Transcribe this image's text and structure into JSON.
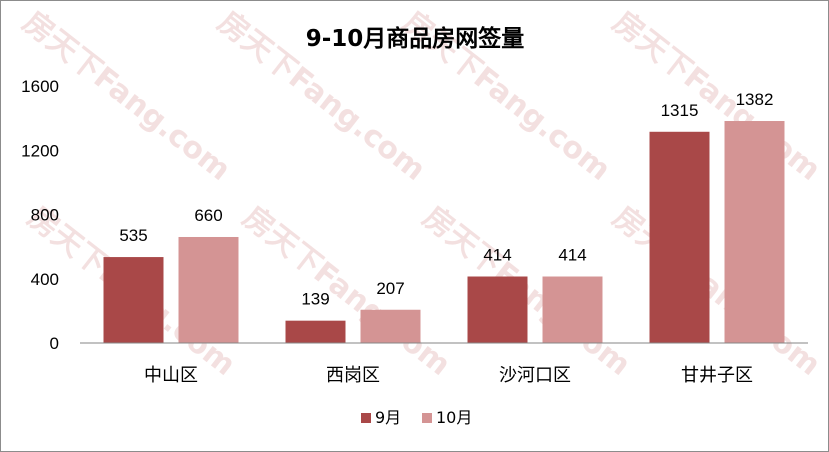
{
  "chart_data": {
    "type": "bar",
    "title": "9-10月商品房网签量",
    "categories": [
      "中山区",
      "西岗区",
      "沙河口区",
      "甘井子区"
    ],
    "series": [
      {
        "name": "9月",
        "values": [
          535,
          139,
          414,
          1315
        ],
        "color": "#a94848"
      },
      {
        "name": "10月",
        "values": [
          660,
          207,
          414,
          1382
        ],
        "color": "#d49494"
      }
    ],
    "ylim": [
      0,
      1600
    ],
    "yticks": [
      0,
      400,
      800,
      1200,
      1600
    ],
    "grid": false,
    "legend_position": "bottom",
    "watermark": "房天下Fang.com"
  }
}
